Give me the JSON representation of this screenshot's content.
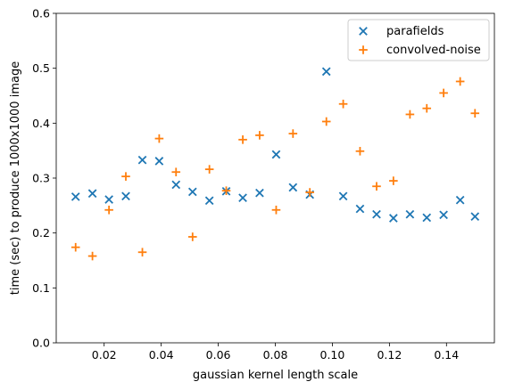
{
  "chart_data": {
    "type": "scatter",
    "xlabel": "gaussian kernel length scale",
    "ylabel": "time (sec) to produce 1000x1000 image",
    "xlim": [
      0.0032,
      0.1568
    ],
    "ylim": [
      0.0,
      0.6
    ],
    "x_ticks": [
      0.02,
      0.04,
      0.06,
      0.08,
      0.1,
      0.12,
      0.14
    ],
    "x_tick_labels": [
      "0.02",
      "0.04",
      "0.06",
      "0.08",
      "0.10",
      "0.12",
      "0.14"
    ],
    "y_ticks": [
      0.0,
      0.1,
      0.2,
      0.3,
      0.4,
      0.5,
      0.6
    ],
    "y_tick_labels": [
      "0.0",
      "0.1",
      "0.2",
      "0.3",
      "0.4",
      "0.5",
      "0.6"
    ],
    "grid": false,
    "legend": "top-right",
    "x": [
      0.01,
      0.0159,
      0.0217,
      0.0276,
      0.0334,
      0.0393,
      0.0452,
      0.051,
      0.0569,
      0.0628,
      0.0686,
      0.0745,
      0.0803,
      0.0862,
      0.0921,
      0.0979,
      0.1038,
      0.1097,
      0.1155,
      0.1214,
      0.1272,
      0.1331,
      0.139,
      0.1448,
      0.15
    ],
    "series": [
      {
        "name": "parafields",
        "marker": "x",
        "color": "#1f77b4",
        "values": [
          0.266,
          0.272,
          0.261,
          0.267,
          0.333,
          0.331,
          0.288,
          0.275,
          0.259,
          0.276,
          0.264,
          0.273,
          0.343,
          0.283,
          0.27,
          0.494,
          0.267,
          0.244,
          0.234,
          0.227,
          0.234,
          0.228,
          0.233,
          0.26,
          0.23
        ]
      },
      {
        "name": "convolved-noise",
        "marker": "+",
        "color": "#ff7f0e",
        "values": [
          0.174,
          0.158,
          0.242,
          0.303,
          0.165,
          0.372,
          0.311,
          0.193,
          0.316,
          0.277,
          0.37,
          0.378,
          0.242,
          0.381,
          0.274,
          0.403,
          0.435,
          0.349,
          0.285,
          0.295,
          0.416,
          0.427,
          0.455,
          0.476,
          0.418
        ]
      }
    ]
  }
}
